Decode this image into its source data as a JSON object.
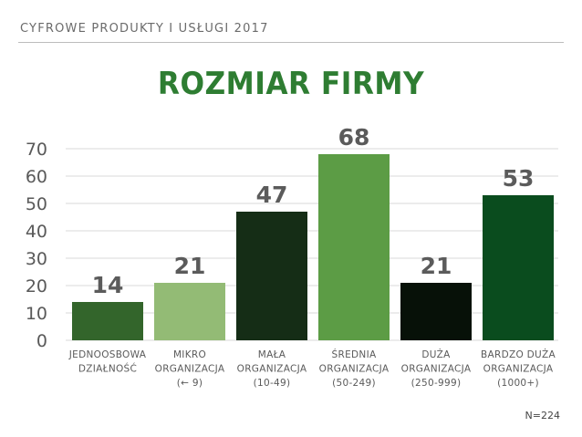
{
  "header": {
    "text": "CYFROWE PRODUKTY I USŁUGI 2017"
  },
  "chart_data": {
    "type": "bar",
    "title": "ROZMIAR FIRMY",
    "categories": [
      [
        "JEDNOOSBOWA",
        "DZIAŁNOŚĆ"
      ],
      [
        "MIKRO",
        "ORGANIZACJA",
        "(← 9)"
      ],
      [
        "MAŁA",
        "ORGANIZACJA",
        "(10-49)"
      ],
      [
        "ŚREDNIA",
        "ORGANIZACJA",
        "(50-249)"
      ],
      [
        "DUŻA",
        "ORGANIZACJA",
        "(250-999)"
      ],
      [
        "BARDZO DUŻA",
        "ORGANIZACJA",
        "(1000+)"
      ]
    ],
    "values": [
      14,
      21,
      47,
      68,
      21,
      53
    ],
    "colors": [
      "#33652b",
      "#93bb75",
      "#152d16",
      "#5c9c45",
      "#071108",
      "#0a4c1e"
    ],
    "value_label_color": "#5b5b5b",
    "yticks": [
      0,
      10,
      20,
      30,
      40,
      50,
      60,
      70
    ],
    "ylim": [
      0,
      70
    ],
    "grid": true,
    "xlabel": "",
    "ylabel": ""
  },
  "note": "N=224"
}
